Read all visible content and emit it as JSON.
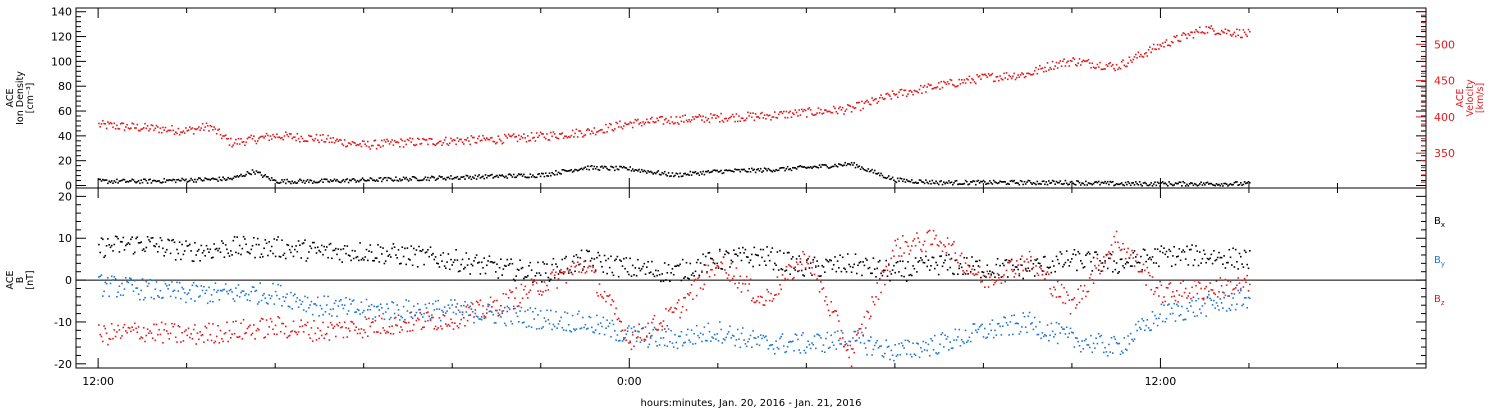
{
  "x_axis": {
    "title": "hours:minutes, Jan. 20, 2016 - Jan. 21, 2016",
    "range_hours": [
      -0.5,
      30.0
    ],
    "major_ticks": [
      {
        "hour": 0,
        "label": "12:00"
      },
      {
        "hour": 12,
        "label": "0:00"
      },
      {
        "hour": 24,
        "label": "12:00"
      }
    ],
    "minor_step_hours": 2
  },
  "colors": {
    "black": "#000000",
    "red": "#e31a1c",
    "blue": "#1f78d0"
  },
  "chart_data": [
    {
      "type": "scatter",
      "panel": "top",
      "ylabel_lines": [
        "ACE",
        "Ion Density",
        "[cm⁻³]"
      ],
      "y2label_lines": [
        "ACE",
        "Velocity",
        "[km/s]"
      ],
      "ylim": [
        -2,
        143
      ],
      "yticks": [
        0,
        20,
        40,
        60,
        80,
        100,
        120,
        140
      ],
      "y2lim": [
        302,
        550
      ],
      "y2ticks": [
        350,
        400,
        450,
        500
      ],
      "grid": false,
      "series": [
        {
          "axis": "left",
          "color": "#000000",
          "x": [
            0,
            1,
            2,
            3,
            3.5,
            4,
            5,
            6,
            7,
            8,
            9,
            10,
            11,
            12,
            13,
            14,
            15,
            16,
            17,
            18,
            19,
            20,
            21,
            22,
            23,
            24,
            25,
            26
          ],
          "y": [
            4,
            4,
            5,
            6,
            12,
            4,
            4,
            5,
            6,
            7,
            8,
            9,
            15,
            14,
            9,
            12,
            13,
            15,
            18,
            5,
            3,
            3,
            3,
            3,
            2,
            2,
            2,
            2
          ]
        },
        {
          "axis": "right",
          "color": "#e31a1c",
          "x": [
            0,
            1,
            2,
            2.5,
            3,
            4,
            5,
            6,
            7,
            8,
            9,
            10,
            11,
            12,
            13,
            14,
            15,
            16,
            17,
            18,
            19,
            20,
            21,
            21.5,
            22,
            23,
            24,
            25,
            26
          ],
          "y": [
            390,
            386,
            382,
            388,
            365,
            375,
            371,
            362,
            366,
            368,
            370,
            374,
            380,
            392,
            397,
            400,
            402,
            407,
            412,
            432,
            444,
            455,
            460,
            472,
            478,
            470,
            500,
            522,
            515
          ]
        }
      ]
    },
    {
      "type": "scatter",
      "panel": "bottom",
      "ylabel_lines": [
        "ACE",
        "B",
        "[nT]"
      ],
      "ylim": [
        -21,
        22
      ],
      "yticks": [
        -20,
        -10,
        0,
        10,
        20
      ],
      "zero_line": true,
      "grid": false,
      "legend_position": "right",
      "series": [
        {
          "name": "Bx",
          "color": "#000000",
          "x": [
            0,
            1,
            2,
            3,
            4,
            5,
            6,
            7,
            8,
            9,
            10,
            11,
            12,
            13,
            14,
            15,
            16,
            17,
            18,
            19,
            20,
            21,
            22,
            23,
            24,
            25,
            26
          ],
          "y": [
            8,
            9,
            7,
            8,
            8,
            7,
            7,
            6,
            5,
            3,
            2,
            5,
            3,
            2,
            5,
            6,
            3,
            4,
            2,
            4,
            3,
            3,
            5,
            4,
            6,
            6,
            5
          ]
        },
        {
          "name": "By",
          "color": "#1f78d0",
          "x": [
            0,
            1,
            2,
            3,
            4,
            5,
            6,
            7,
            8,
            9,
            10,
            11,
            12,
            13,
            14,
            15,
            16,
            17,
            18,
            19,
            20,
            21,
            22,
            23,
            24,
            25,
            26
          ],
          "y": [
            -1,
            -2,
            -3,
            -3,
            -3,
            -6,
            -7,
            -7,
            -7,
            -8,
            -9,
            -10,
            -13,
            -14,
            -12,
            -15,
            -15,
            -14,
            -17,
            -15,
            -12,
            -10,
            -14,
            -16,
            -8,
            -6,
            -4
          ]
        },
        {
          "name": "Bz",
          "color": "#e31a1c",
          "x": [
            0,
            1,
            2,
            3,
            4,
            5,
            6,
            7,
            8,
            9,
            10,
            11,
            12,
            13,
            14,
            15,
            16,
            17,
            18,
            19,
            20,
            21,
            22,
            23,
            24,
            25,
            26
          ],
          "y": [
            -13,
            -12,
            -13,
            -12,
            -11,
            -12,
            -11,
            -10,
            -9,
            -6,
            -1,
            4,
            -14,
            -8,
            5,
            -5,
            6,
            -18,
            8,
            10,
            0,
            5,
            -6,
            10,
            -3,
            -2,
            -1
          ]
        }
      ]
    }
  ]
}
